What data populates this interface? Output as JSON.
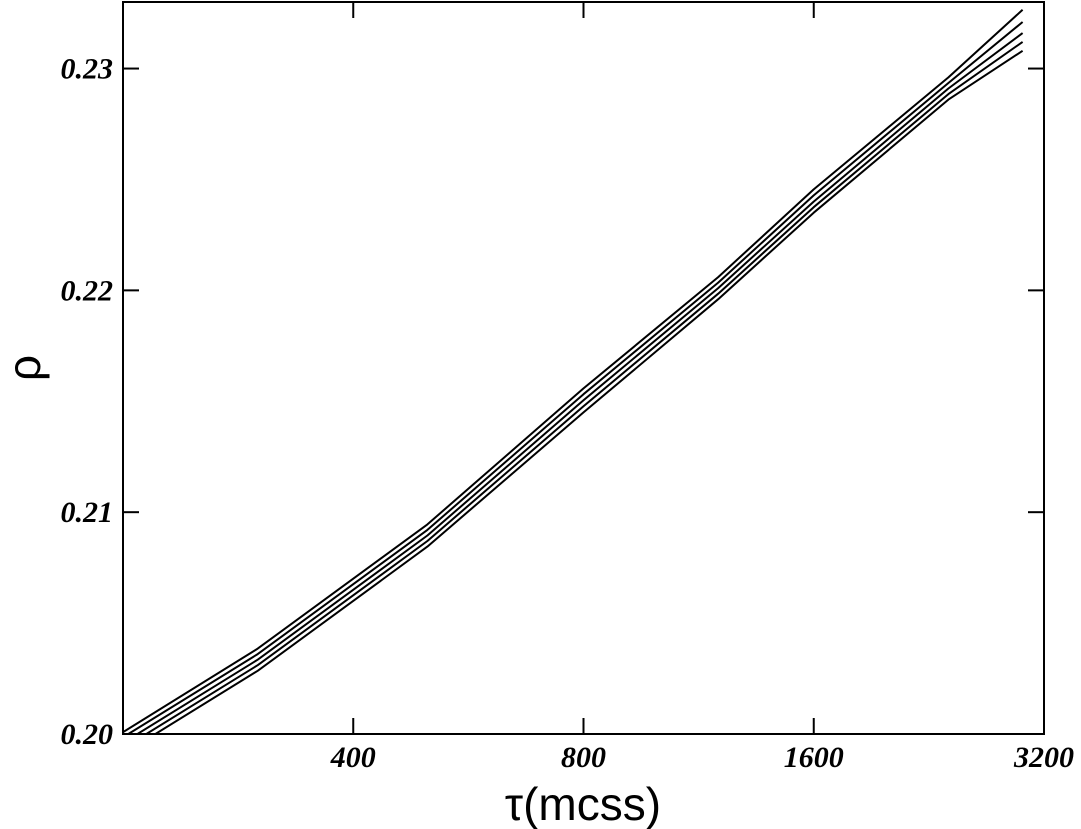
{
  "chart_data": {
    "type": "line",
    "title": "",
    "xlabel": "τ(mcss)",
    "ylabel": "ρ",
    "x_scale": "log",
    "xlim": [
      200,
      3200
    ],
    "ylim": [
      0.2,
      0.233
    ],
    "grid": false,
    "x_ticks": [
      {
        "value": 400,
        "label": "400"
      },
      {
        "value": 800,
        "label": "800"
      },
      {
        "value": 1600,
        "label": "1600"
      },
      {
        "value": 3200,
        "label": "3200"
      }
    ],
    "y_ticks": [
      {
        "value": 0.2,
        "label": "0.20"
      },
      {
        "value": 0.21,
        "label": "0.21"
      },
      {
        "value": 0.22,
        "label": "0.22"
      },
      {
        "value": 0.23,
        "label": "0.23"
      }
    ],
    "series": [
      {
        "x": [
          200,
          300,
          500,
          800,
          1200,
          1600,
          2400,
          3000
        ],
        "y": [
          0.20008,
          0.20385,
          0.20945,
          0.21558,
          0.2206,
          0.22455,
          0.2296,
          0.23265
        ]
      },
      {
        "x": [
          200,
          300,
          500,
          800,
          1200,
          1600,
          2400,
          3000
        ],
        "y": [
          0.19985,
          0.2036,
          0.2092,
          0.21532,
          0.22035,
          0.22428,
          0.22935,
          0.2321
        ]
      },
      {
        "x": [
          200,
          300,
          500,
          800,
          1200,
          1600,
          2400,
          3000
        ],
        "y": [
          0.1996,
          0.20335,
          0.20895,
          0.21505,
          0.2201,
          0.224,
          0.2291,
          0.2316
        ]
      },
      {
        "x": [
          200,
          300,
          500,
          800,
          1200,
          1600,
          2400,
          3000
        ],
        "y": [
          0.19935,
          0.2031,
          0.2087,
          0.21478,
          0.21985,
          0.22375,
          0.22885,
          0.2312
        ]
      },
      {
        "x": [
          200,
          300,
          500,
          800,
          1200,
          1600,
          2400,
          3000
        ],
        "y": [
          0.1991,
          0.20285,
          0.20845,
          0.2145,
          0.2196,
          0.2235,
          0.2286,
          0.2308
        ]
      }
    ]
  }
}
